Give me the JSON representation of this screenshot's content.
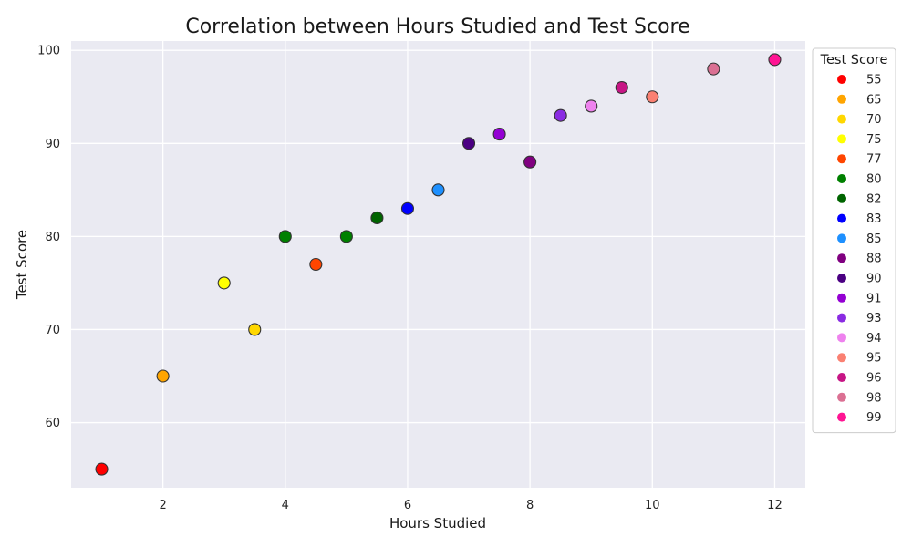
{
  "chart_data": {
    "type": "scatter",
    "title": "Correlation between Hours Studied and Test Score",
    "xlabel": "Hours Studied",
    "ylabel": "Test Score",
    "xlim": [
      0.5,
      12.5
    ],
    "ylim": [
      53,
      101
    ],
    "x_ticks": [
      2,
      4,
      6,
      8,
      10,
      12
    ],
    "y_ticks": [
      60,
      70,
      80,
      90,
      100
    ],
    "grid": true,
    "legend": {
      "title": "Test Score",
      "placement": "outside-right",
      "entries": [
        {
          "label": "55",
          "color": "#ff0000"
        },
        {
          "label": "65",
          "color": "#ffa500"
        },
        {
          "label": "70",
          "color": "#ffd700"
        },
        {
          "label": "75",
          "color": "#ffff00"
        },
        {
          "label": "77",
          "color": "#ff4500"
        },
        {
          "label": "80",
          "color": "#008000"
        },
        {
          "label": "82",
          "color": "#006400"
        },
        {
          "label": "83",
          "color": "#0000ff"
        },
        {
          "label": "85",
          "color": "#1e90ff"
        },
        {
          "label": "88",
          "color": "#800080"
        },
        {
          "label": "90",
          "color": "#4b0082"
        },
        {
          "label": "91",
          "color": "#9400d3"
        },
        {
          "label": "93",
          "color": "#8a2be2"
        },
        {
          "label": "94",
          "color": "#ee82ee"
        },
        {
          "label": "95",
          "color": "#fa8072"
        },
        {
          "label": "96",
          "color": "#c71585"
        },
        {
          "label": "98",
          "color": "#db7093"
        },
        {
          "label": "99",
          "color": "#ff1493"
        }
      ]
    },
    "points": [
      {
        "x": 1,
        "y": 55
      },
      {
        "x": 2,
        "y": 65
      },
      {
        "x": 3,
        "y": 75
      },
      {
        "x": 3.5,
        "y": 70
      },
      {
        "x": 4,
        "y": 80
      },
      {
        "x": 4.5,
        "y": 77
      },
      {
        "x": 5,
        "y": 80
      },
      {
        "x": 5.5,
        "y": 82
      },
      {
        "x": 6,
        "y": 83
      },
      {
        "x": 6.5,
        "y": 85
      },
      {
        "x": 7,
        "y": 90
      },
      {
        "x": 7.5,
        "y": 91
      },
      {
        "x": 8,
        "y": 88
      },
      {
        "x": 8.5,
        "y": 93
      },
      {
        "x": 9,
        "y": 94
      },
      {
        "x": 9.5,
        "y": 96
      },
      {
        "x": 10,
        "y": 95
      },
      {
        "x": 11,
        "y": 98
      },
      {
        "x": 12,
        "y": 99
      }
    ]
  }
}
